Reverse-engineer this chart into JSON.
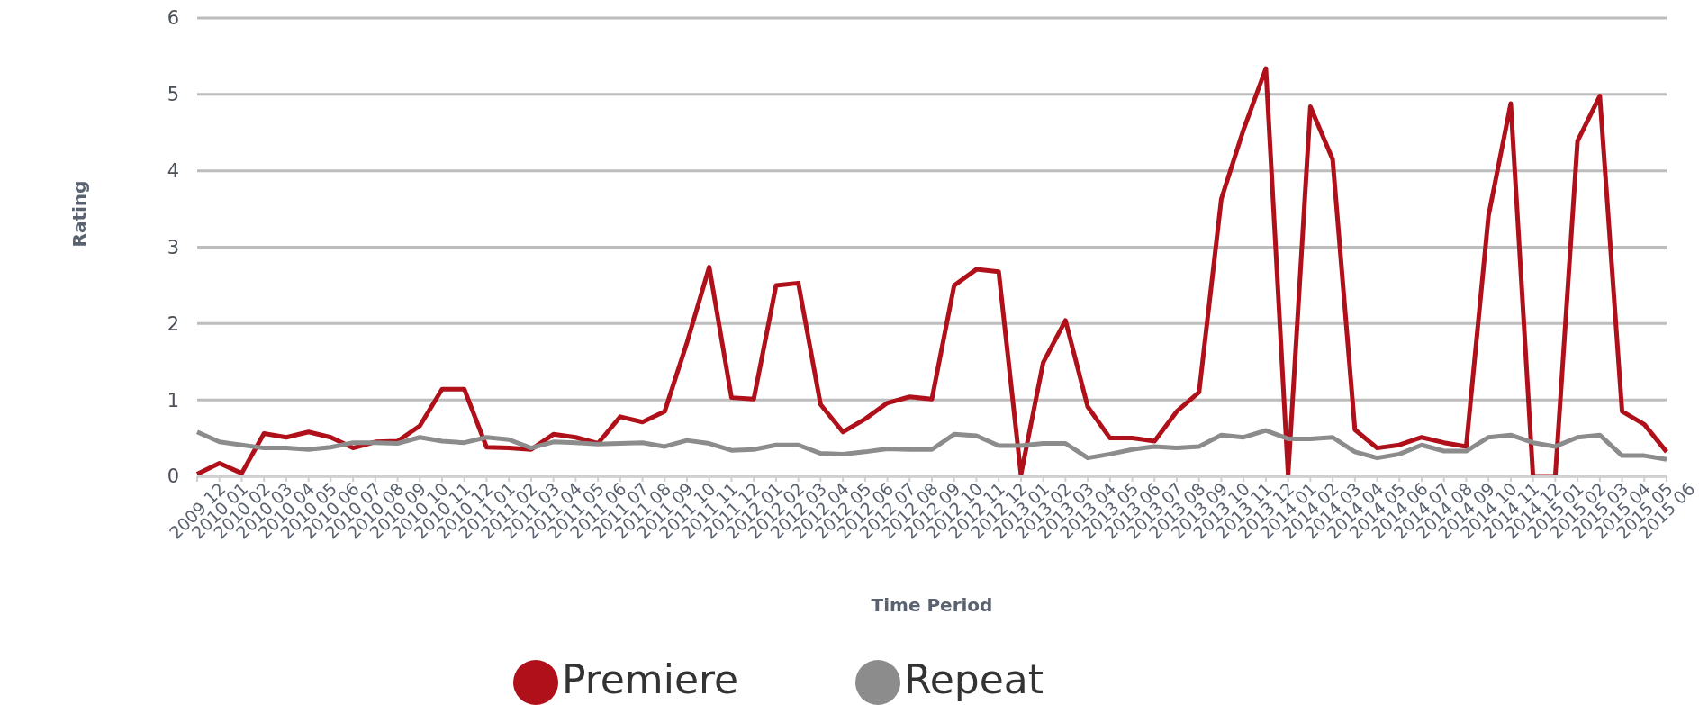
{
  "chart_data": {
    "type": "line",
    "xlabel": "Time Period",
    "ylabel": "Rating",
    "categories": [
      "2009 12",
      "2010 01",
      "2010 02",
      "2010 03",
      "2010 04",
      "2010 05",
      "2010 06",
      "2010 07",
      "2010 08",
      "2010 09",
      "2010 10",
      "2010 11",
      "2010 12",
      "2011 01",
      "2011 02",
      "2011 03",
      "2011 04",
      "2011 05",
      "2011 06",
      "2011 07",
      "2011 08",
      "2011 09",
      "2011 10",
      "2011 11",
      "2011 12",
      "2012 01",
      "2012 02",
      "2012 03",
      "2012 04",
      "2012 05",
      "2012 06",
      "2012 07",
      "2012 08",
      "2012 09",
      "2012 10",
      "2012 11",
      "2012 12",
      "2013 01",
      "2013 02",
      "2013 03",
      "2013 04",
      "2013 05",
      "2013 06",
      "2013 07",
      "2013 08",
      "2013 09",
      "2013 10",
      "2013 11",
      "2013 12",
      "2014 01",
      "2014 02",
      "2014 03",
      "2014 04",
      "2014 05",
      "2014 06",
      "2014 07",
      "2014 08",
      "2014 09",
      "2014 10",
      "2014 11",
      "2014 12",
      "2015 01",
      "2015 02",
      "2015 03",
      "2015 04",
      "2015 05",
      "2015 06"
    ],
    "series": [
      {
        "name": "Premiere",
        "color": "#b0101a",
        "values": [
          0.03,
          0.17,
          0.04,
          0.56,
          0.51,
          0.58,
          0.51,
          0.37,
          0.45,
          0.46,
          0.66,
          1.14,
          1.14,
          0.38,
          0.37,
          0.35,
          0.55,
          0.51,
          0.43,
          0.78,
          0.71,
          0.85,
          1.75,
          2.74,
          1.03,
          1.01,
          2.5,
          2.53,
          0.94,
          0.58,
          0.75,
          0.96,
          1.04,
          1.01,
          2.5,
          2.71,
          2.68,
          0.02,
          1.49,
          2.04,
          0.91,
          0.5,
          0.5,
          0.46,
          0.85,
          1.1,
          3.63,
          4.54,
          5.34,
          0.02,
          4.84,
          4.15,
          0.61,
          0.37,
          0.41,
          0.51,
          0.44,
          0.39,
          3.41,
          4.88,
          0,
          0,
          4.39,
          4.98,
          0.85,
          0.68,
          0.32
        ]
      },
      {
        "name": "Repeat",
        "color": "#8c8c8c",
        "values": [
          0.58,
          0.45,
          0.41,
          0.37,
          0.37,
          0.35,
          0.38,
          0.44,
          0.44,
          0.43,
          0.51,
          0.46,
          0.44,
          0.51,
          0.48,
          0.37,
          0.45,
          0.44,
          0.42,
          0.43,
          0.44,
          0.39,
          0.47,
          0.43,
          0.34,
          0.35,
          0.41,
          0.41,
          0.3,
          0.29,
          0.32,
          0.36,
          0.35,
          0.35,
          0.55,
          0.53,
          0.4,
          0.4,
          0.43,
          0.43,
          0.24,
          0.29,
          0.35,
          0.39,
          0.37,
          0.39,
          0.54,
          0.51,
          0.6,
          0.49,
          0.49,
          0.51,
          0.32,
          0.24,
          0.29,
          0.41,
          0.33,
          0.33,
          0.51,
          0.54,
          0.44,
          0.39,
          0.51,
          0.54,
          0.27,
          0.27,
          0.22
        ]
      }
    ],
    "ylim": [
      0,
      6
    ],
    "yticks": [
      0,
      1,
      2,
      3,
      4,
      5,
      6
    ],
    "grid": "y",
    "legend": "bottom"
  }
}
